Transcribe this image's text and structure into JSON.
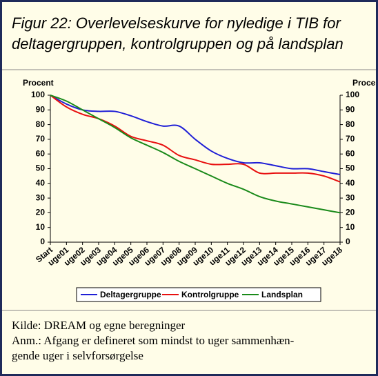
{
  "chart_data": {
    "type": "line",
    "title": [
      "Figur 22: Overlevelseskurve for nyledige i TIB for",
      "deltagergruppen, kontrolgruppen og på landsplan"
    ],
    "ylabel": "Procent",
    "y2label": "Procent",
    "categories": [
      "Start",
      "uge01",
      "uge02",
      "uge03",
      "uge04",
      "uge05",
      "uge06",
      "uge07",
      "uge08",
      "uge09",
      "uge10",
      "uge11",
      "uge12",
      "uge13",
      "uge14",
      "uge15",
      "uge16",
      "uge17",
      "uge18"
    ],
    "series": [
      {
        "name": "Deltagergruppe",
        "color": "#1f1fd6",
        "values": [
          100,
          94,
          90,
          89,
          89,
          86,
          82,
          79,
          79,
          70,
          62,
          57,
          54,
          54,
          52,
          50,
          50,
          48,
          46
        ]
      },
      {
        "name": "Kontrolgruppe",
        "color": "#e81010",
        "values": [
          100,
          92,
          87,
          84,
          79,
          72,
          69,
          66,
          59,
          56,
          53,
          53,
          53,
          47,
          47,
          47,
          47,
          45,
          41
        ]
      },
      {
        "name": "Landsplan",
        "color": "#1a8a1a",
        "values": [
          100,
          96,
          90,
          84,
          78,
          71,
          66,
          61,
          55,
          50,
          45,
          40,
          36,
          31,
          28,
          26,
          24,
          22,
          20
        ]
      }
    ],
    "ylim": [
      0,
      100
    ],
    "yticks": [
      0,
      10,
      20,
      30,
      40,
      50,
      60,
      70,
      80,
      90,
      100
    ],
    "y2lim": [
      0,
      100
    ],
    "y2ticks": [
      0,
      10,
      20,
      30,
      40,
      50,
      60,
      70,
      80,
      90,
      100
    ],
    "legend": "bottom",
    "notes": [
      "Kilde: DREAM og egne beregninger",
      "Anm.: Afgang er defineret som mindst to uger sammenhæn-",
      "gende uger i selvforsørgelse"
    ]
  }
}
